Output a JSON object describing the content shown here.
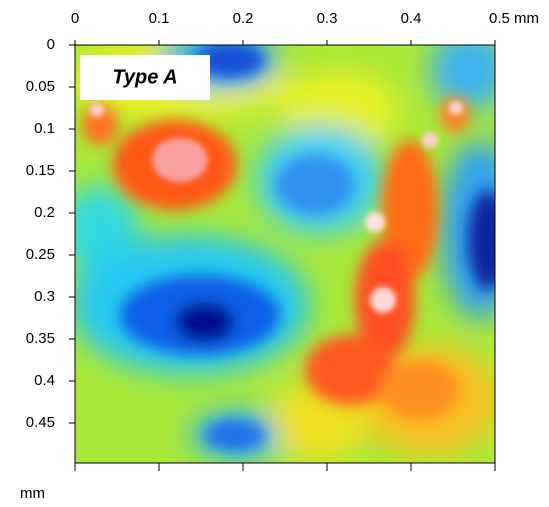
{
  "chart_data": {
    "type": "heatmap",
    "annotation": "Type A",
    "xlim": [
      0,
      0.5
    ],
    "ylim": [
      0,
      0.5
    ],
    "xticks": [
      0,
      0.1,
      0.2,
      0.3,
      0.4,
      {
        "value": 0.5,
        "label": "0.5 mm"
      }
    ],
    "yticks": [
      0,
      0.05,
      0.1,
      0.15,
      0.2,
      0.25,
      0.3,
      0.35,
      0.4,
      0.45
    ],
    "ylabel": "mm"
  }
}
